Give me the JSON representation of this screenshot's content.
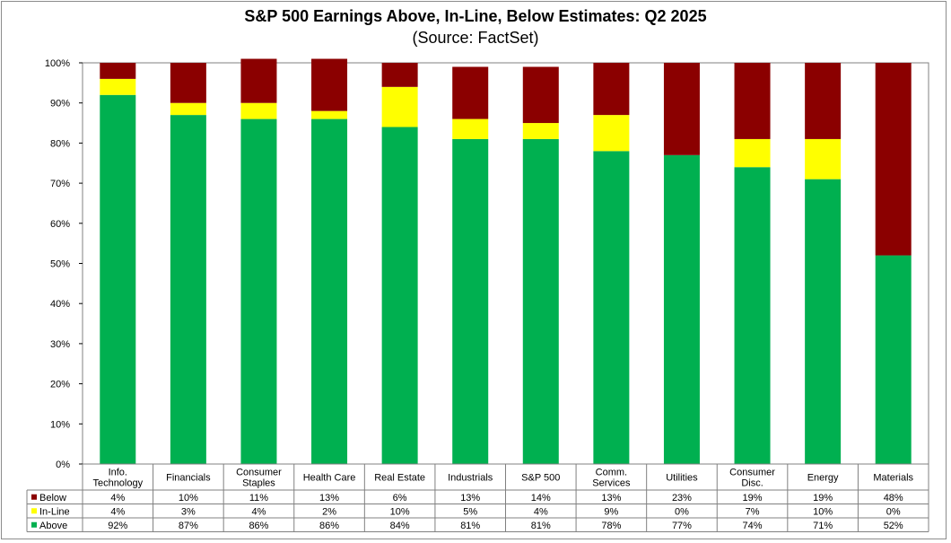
{
  "chart_data": {
    "type": "bar",
    "stacked": true,
    "title": "S&P 500 Earnings Above, In-Line, Below Estimates: Q2 2025",
    "subtitle": "(Source: FactSet)",
    "categories": [
      "Info. Technology",
      "Financials",
      "Consumer Staples",
      "Health Care",
      "Real Estate",
      "Industrials",
      "S&P 500",
      "Comm. Services",
      "Utilities",
      "Consumer Disc.",
      "Energy",
      "Materials"
    ],
    "category_lines": [
      [
        "Info.",
        "Technology"
      ],
      [
        "Financials"
      ],
      [
        "Consumer",
        "Staples"
      ],
      [
        "Health Care"
      ],
      [
        "Real Estate"
      ],
      [
        "Industrials"
      ],
      [
        "S&P 500"
      ],
      [
        "Comm.",
        "Services"
      ],
      [
        "Utilities"
      ],
      [
        "Consumer",
        "Disc."
      ],
      [
        "Energy"
      ],
      [
        "Materials"
      ]
    ],
    "ylim": [
      0,
      100
    ],
    "yticks": [
      "0%",
      "10%",
      "20%",
      "30%",
      "40%",
      "50%",
      "60%",
      "70%",
      "80%",
      "90%",
      "100%"
    ],
    "series": [
      {
        "name": "Below",
        "color": "#8b0000",
        "values": [
          4,
          10,
          11,
          13,
          6,
          13,
          14,
          13,
          23,
          19,
          19,
          48
        ],
        "labels": [
          "4%",
          "10%",
          "11%",
          "13%",
          "6%",
          "13%",
          "14%",
          "13%",
          "23%",
          "19%",
          "19%",
          "48%"
        ]
      },
      {
        "name": "In-Line",
        "color": "#ffff00",
        "values": [
          4,
          3,
          4,
          2,
          10,
          5,
          4,
          9,
          0,
          7,
          10,
          0
        ],
        "labels": [
          "4%",
          "3%",
          "4%",
          "2%",
          "10%",
          "5%",
          "4%",
          "9%",
          "0%",
          "7%",
          "10%",
          "0%"
        ]
      },
      {
        "name": "Above",
        "color": "#00b050",
        "values": [
          92,
          87,
          86,
          86,
          84,
          81,
          81,
          78,
          77,
          74,
          71,
          52
        ],
        "labels": [
          "92%",
          "87%",
          "86%",
          "86%",
          "84%",
          "81%",
          "81%",
          "78%",
          "77%",
          "74%",
          "71%",
          "52%"
        ]
      }
    ]
  }
}
